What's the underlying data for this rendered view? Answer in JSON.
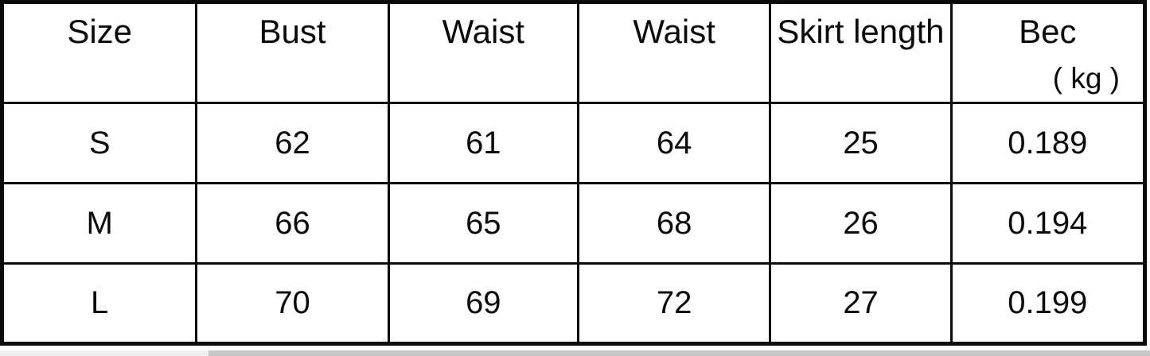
{
  "size_chart": {
    "headers": [
      "Size",
      "Bust",
      "Waist",
      "Waist",
      "Skirt length",
      "Bec"
    ],
    "weight_unit": "( kg )",
    "rows": [
      [
        "S",
        "62",
        "61",
        "64",
        "25",
        "0.189"
      ],
      [
        "M",
        "66",
        "65",
        "68",
        "26",
        "0.194"
      ],
      [
        "L",
        "70",
        "69",
        "72",
        "27",
        "0.199"
      ]
    ]
  },
  "colors": {
    "border": "#0a0a0a",
    "background": "#ffffff",
    "bottom_strip_light": "#efefef",
    "bottom_strip_dark": "#c6c6c6"
  }
}
